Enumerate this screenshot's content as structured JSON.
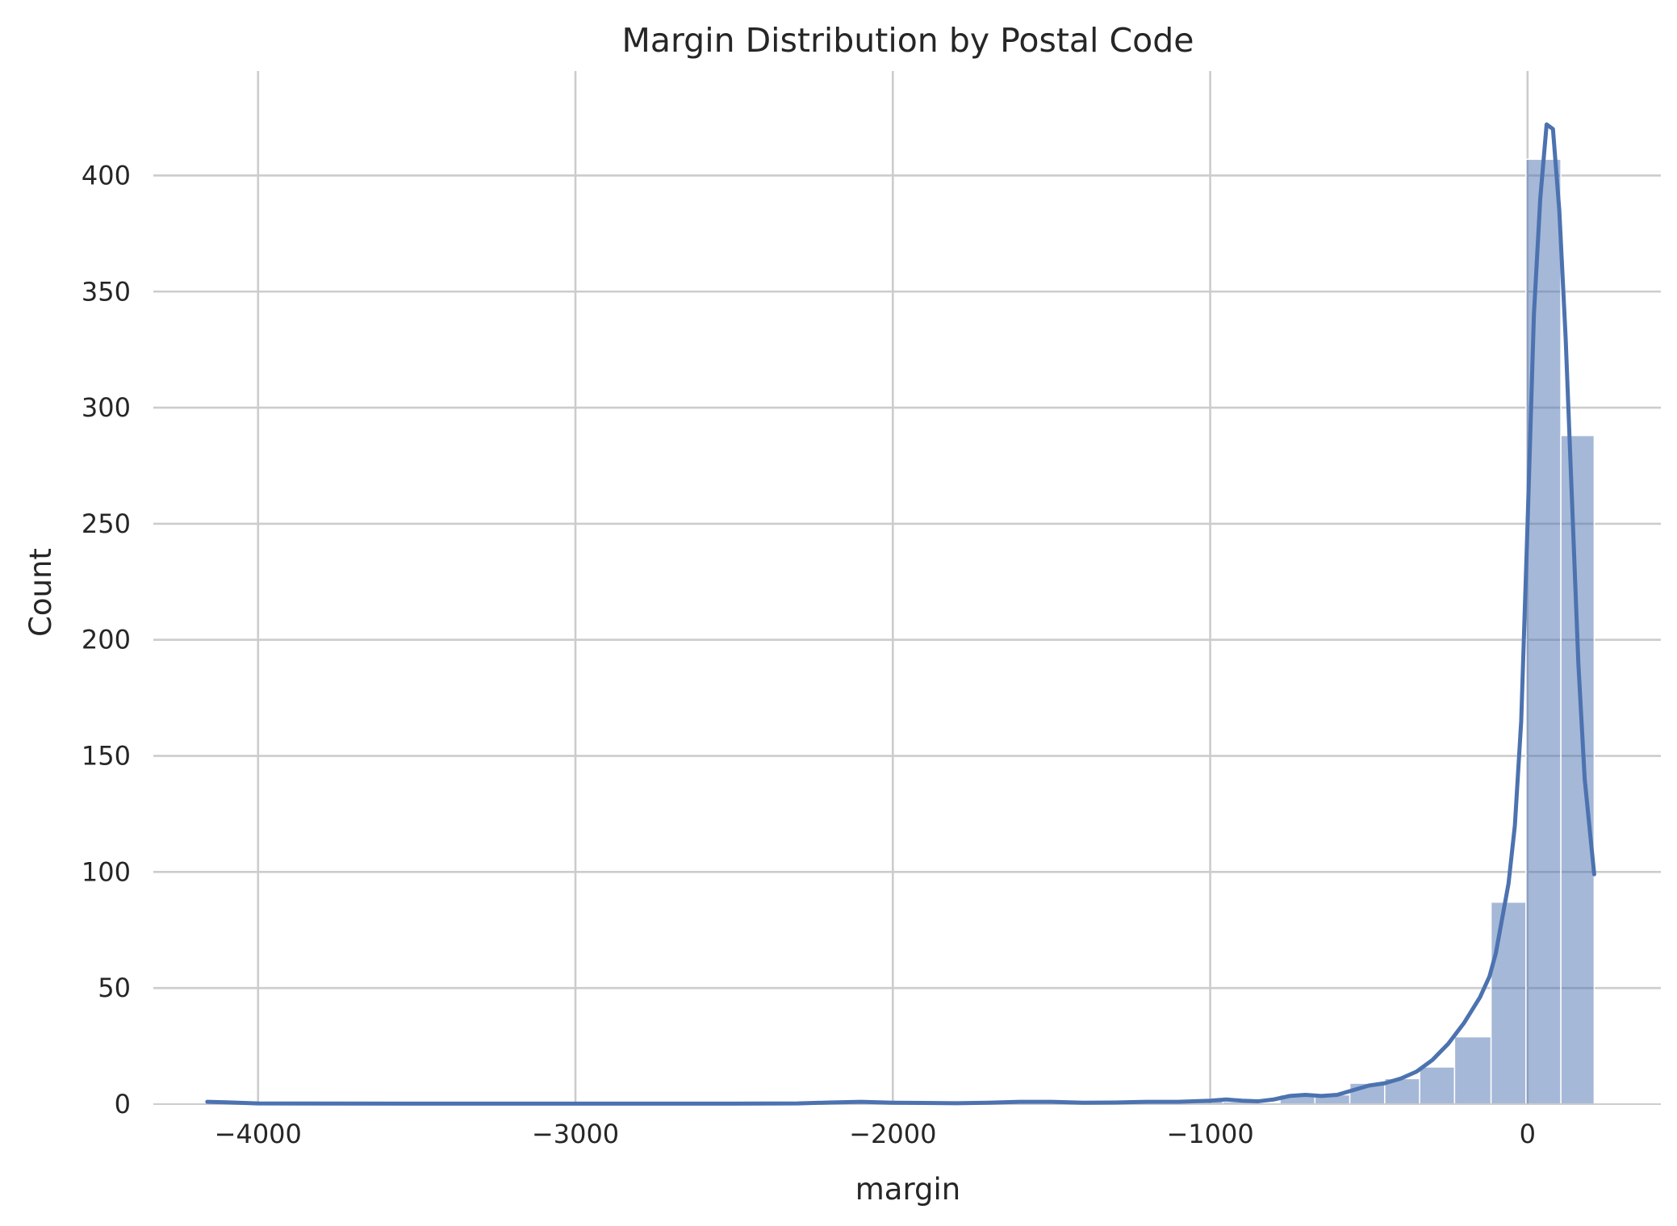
{
  "chart_data": {
    "type": "histogram",
    "title": "Margin Distribution by Postal Code",
    "xlabel": "margin",
    "ylabel": "Count",
    "xlim": [
      -4330,
      420
    ],
    "ylim": [
      0,
      445
    ],
    "xticks": [
      -4000,
      -3000,
      -2000,
      -1000,
      0
    ],
    "xtick_labels": [
      "−4000",
      "−3000",
      "−2000",
      "−1000",
      "0"
    ],
    "yticks": [
      0,
      50,
      100,
      150,
      200,
      250,
      300,
      350,
      400
    ],
    "ytick_labels": [
      "0",
      "50",
      "100",
      "150",
      "200",
      "250",
      "300",
      "350",
      "400"
    ],
    "grid": true,
    "bins": [
      {
        "x0": -4160,
        "x1": -4050,
        "count": 1
      },
      {
        "x0": -2160,
        "x1": -2050,
        "count": 1
      },
      {
        "x0": -1620,
        "x1": -1510,
        "count": 1
      },
      {
        "x0": -1290,
        "x1": -1180,
        "count": 1
      },
      {
        "x0": -1070,
        "x1": -960,
        "count": 2
      },
      {
        "x0": -960,
        "x1": -850,
        "count": 1
      },
      {
        "x0": -780,
        "x1": -670,
        "count": 4
      },
      {
        "x0": -670,
        "x1": -560,
        "count": 4
      },
      {
        "x0": -560,
        "x1": -450,
        "count": 9
      },
      {
        "x0": -450,
        "x1": -340,
        "count": 11
      },
      {
        "x0": -340,
        "x1": -230,
        "count": 16
      },
      {
        "x0": -230,
        "x1": -115,
        "count": 29
      },
      {
        "x0": -115,
        "x1": -5,
        "count": 87
      },
      {
        "x0": -5,
        "x1": 105,
        "count": 407
      },
      {
        "x0": 105,
        "x1": 210,
        "count": 288
      }
    ],
    "kde": {
      "x": [
        -4160,
        -4100,
        -4000,
        -3500,
        -3000,
        -2500,
        -2300,
        -2200,
        -2100,
        -2000,
        -1800,
        -1700,
        -1600,
        -1500,
        -1400,
        -1300,
        -1200,
        -1100,
        -1000,
        -950,
        -900,
        -850,
        -800,
        -750,
        -700,
        -650,
        -600,
        -550,
        -500,
        -450,
        -400,
        -350,
        -300,
        -250,
        -200,
        -150,
        -120,
        -100,
        -80,
        -60,
        -40,
        -20,
        0,
        20,
        40,
        60,
        80,
        100,
        120,
        140,
        160,
        180,
        210
      ],
      "y": [
        1,
        0.8,
        0.3,
        0.2,
        0.2,
        0.2,
        0.3,
        0.7,
        1,
        0.6,
        0.4,
        0.6,
        1,
        1,
        0.6,
        0.7,
        1,
        1,
        1.5,
        2,
        1.5,
        1.2,
        2,
        3.5,
        4,
        3.5,
        4,
        6,
        8,
        9,
        11,
        14,
        19,
        26,
        35,
        46,
        55,
        65,
        80,
        95,
        120,
        165,
        250,
        340,
        390,
        422,
        420,
        385,
        330,
        260,
        190,
        140,
        99
      ]
    }
  }
}
